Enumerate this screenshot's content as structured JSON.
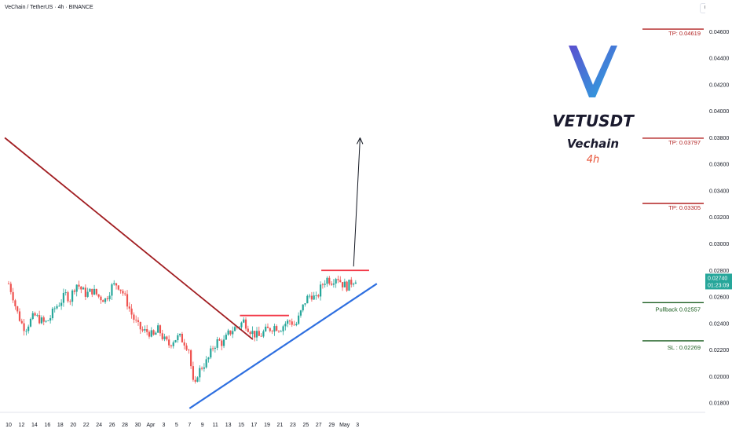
{
  "header": {
    "title": "VeChain / TetherUS · 4h · BINANCE",
    "currency": "USDT"
  },
  "brand": {
    "symbol": "VETUSDT",
    "name": "Vechain",
    "timeframe": "4h",
    "logo_colors": [
      "#5b4fcf",
      "#2aa9e0"
    ]
  },
  "chart_data": {
    "type": "candlestick",
    "x_labels": [
      "10",
      "12",
      "14",
      "16",
      "18",
      "20",
      "22",
      "24",
      "26",
      "28",
      "30",
      "Apr",
      "3",
      "5",
      "7",
      "9",
      "11",
      "13",
      "15",
      "17",
      "19",
      "21",
      "23",
      "25",
      "27",
      "29",
      "May",
      "3"
    ],
    "y_ticks": [
      "0.04600",
      "0.04400",
      "0.04200",
      "0.04000",
      "0.03800",
      "0.03600",
      "0.03400",
      "0.03200",
      "0.03000",
      "0.02800",
      "0.02600",
      "0.02400",
      "0.02200",
      "0.02000",
      "0.01800"
    ],
    "ylim": [
      0.0173,
      0.0472
    ],
    "price_path": [
      [
        0,
        0.027
      ],
      [
        0.3,
        0.0262
      ],
      [
        0.6,
        0.025
      ],
      [
        1.0,
        0.024
      ],
      [
        1.3,
        0.0236
      ],
      [
        1.6,
        0.0241
      ],
      [
        2.0,
        0.0246
      ],
      [
        2.4,
        0.0243
      ],
      [
        2.8,
        0.024
      ],
      [
        3.2,
        0.0244
      ],
      [
        3.6,
        0.0252
      ],
      [
        4.0,
        0.0256
      ],
      [
        4.4,
        0.0262
      ],
      [
        4.8,
        0.0258
      ],
      [
        5.0,
        0.0266
      ],
      [
        5.3,
        0.027
      ],
      [
        5.6,
        0.0266
      ],
      [
        6.0,
        0.0262
      ],
      [
        6.5,
        0.0265
      ],
      [
        7.0,
        0.026
      ],
      [
        7.5,
        0.0258
      ],
      [
        8.0,
        0.0268
      ],
      [
        8.4,
        0.027
      ],
      [
        8.8,
        0.0264
      ],
      [
        9.2,
        0.0255
      ],
      [
        9.6,
        0.0245
      ],
      [
        10.0,
        0.0238
      ],
      [
        10.4,
        0.0234
      ],
      [
        10.8,
        0.0234
      ],
      [
        11.2,
        0.023
      ],
      [
        11.6,
        0.0236
      ],
      [
        12.0,
        0.0228
      ],
      [
        12.4,
        0.0224
      ],
      [
        12.8,
        0.0228
      ],
      [
        13.2,
        0.023
      ],
      [
        13.6,
        0.0226
      ],
      [
        14.0,
        0.022
      ],
      [
        14.2,
        0.0198
      ],
      [
        14.4,
        0.019
      ],
      [
        14.6,
        0.0202
      ],
      [
        15.0,
        0.0208
      ],
      [
        15.4,
        0.0212
      ],
      [
        15.8,
        0.0222
      ],
      [
        16.2,
        0.0227
      ],
      [
        16.6,
        0.0225
      ],
      [
        17.0,
        0.0232
      ],
      [
        17.4,
        0.0236
      ],
      [
        17.8,
        0.0238
      ],
      [
        18.2,
        0.0242
      ],
      [
        18.6,
        0.0236
      ],
      [
        19.0,
        0.0232
      ],
      [
        19.4,
        0.023
      ],
      [
        19.8,
        0.0234
      ],
      [
        20.2,
        0.0236
      ],
      [
        20.6,
        0.0238
      ],
      [
        21.0,
        0.0236
      ],
      [
        21.4,
        0.024
      ],
      [
        21.8,
        0.0242
      ],
      [
        22.2,
        0.0238
      ],
      [
        22.6,
        0.0248
      ],
      [
        23.0,
        0.0258
      ],
      [
        23.4,
        0.0262
      ],
      [
        23.8,
        0.0258
      ],
      [
        24.2,
        0.0268
      ],
      [
        24.6,
        0.0274
      ],
      [
        25.0,
        0.0272
      ],
      [
        25.4,
        0.0276
      ],
      [
        25.8,
        0.027
      ],
      [
        26.2,
        0.0268
      ],
      [
        26.6,
        0.0272
      ],
      [
        26.9,
        0.0274
      ]
    ],
    "current_price": "0.02740",
    "countdown": "01:23:09",
    "levels": [
      {
        "label": "TP: 0.04619",
        "value": 0.04619
      },
      {
        "label": "TP: 0.03797",
        "value": 0.03797
      },
      {
        "label": "TP: 0.03305",
        "value": 0.03305
      },
      {
        "label": "Pullback 0.02557",
        "value": 0.02557
      },
      {
        "label": "SL : 0.02269",
        "value": 0.02269
      }
    ],
    "resistance_levels": [
      0.028,
      0.0246
    ],
    "downtrend_line": [
      [
        -0.3,
        0.038
      ],
      [
        18.9,
        0.0228
      ]
    ],
    "uptrend_line": [
      [
        14.0,
        0.0176
      ],
      [
        28.5,
        0.027
      ]
    ],
    "projection_arrow": [
      [
        26.7,
        0.0283
      ],
      [
        27.2,
        0.038
      ]
    ],
    "colors": {
      "up": "#26a69a",
      "down": "#ef5350",
      "downtrend": "#a11d21",
      "uptrend": "#2e6fe0",
      "resistance": "#f23645",
      "tp": "#b22222",
      "pullback": "#1b5e20",
      "price_tag": "#26a69a"
    }
  }
}
